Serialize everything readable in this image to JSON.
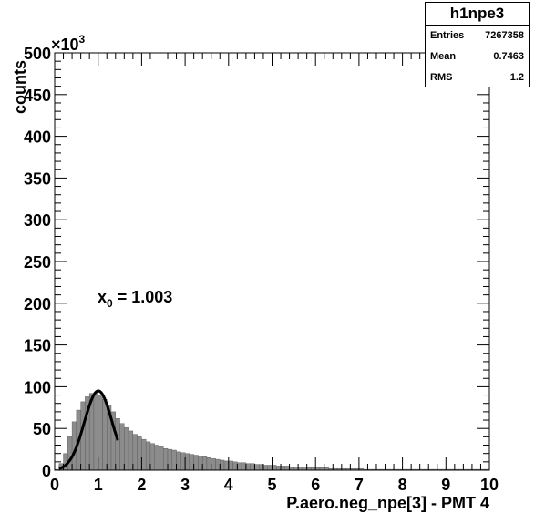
{
  "stats": {
    "title": "h1npe3",
    "rows": [
      {
        "key": "Entries",
        "value": "7267358"
      },
      {
        "key": "Mean",
        "value": "0.7463"
      },
      {
        "key": "RMS",
        "value": "1.2"
      }
    ]
  },
  "annotation": {
    "prefix": "x",
    "subscript": "0",
    "value": " = 1.003"
  },
  "chart_data": {
    "type": "bar",
    "xlabel": "P.aero.neg_npe[3] - PMT 4",
    "ylabel": "counts",
    "y_multiplier": "×10",
    "y_multiplier_exp": "3",
    "xlim": [
      0,
      10
    ],
    "ylim": [
      0,
      500
    ],
    "x_ticks": [
      "0",
      "1",
      "2",
      "3",
      "4",
      "5",
      "6",
      "7",
      "8",
      "9",
      "10"
    ],
    "y_ticks": [
      "0",
      "50",
      "100",
      "150",
      "200",
      "250",
      "300",
      "350",
      "400",
      "450",
      "500"
    ],
    "bin_width": 0.1,
    "bin_low_edges_start": 0,
    "values": [
      1,
      8,
      20,
      40,
      58,
      72,
      82,
      88,
      92,
      93,
      90,
      85,
      78,
      70,
      62,
      56,
      51,
      47,
      43,
      40,
      37,
      34,
      32,
      30,
      28,
      26,
      25,
      24,
      22,
      21,
      20,
      19,
      18,
      17,
      16,
      15,
      14,
      13,
      12,
      11,
      11,
      10,
      9,
      9,
      8,
      8,
      7,
      7,
      6,
      6,
      6,
      5,
      5,
      5,
      4,
      4,
      4,
      4,
      3,
      3,
      3,
      3,
      3,
      2,
      2,
      2,
      2,
      2,
      2,
      2,
      2,
      1,
      1,
      1,
      1,
      1,
      1,
      1,
      1,
      1,
      1,
      1,
      1,
      1,
      1,
      1,
      1,
      1,
      1,
      1,
      1,
      1,
      1,
      1,
      1,
      1,
      1,
      1,
      1,
      1
    ],
    "fill_color": "#8c8c8c",
    "fit": {
      "function": "gaussian",
      "x0": 1.003,
      "amplitude": 95,
      "sigma": 0.32,
      "x_range": [
        0.1,
        1.45
      ],
      "color": "#000000"
    },
    "grid": false,
    "legend": "stats box top-right"
  }
}
